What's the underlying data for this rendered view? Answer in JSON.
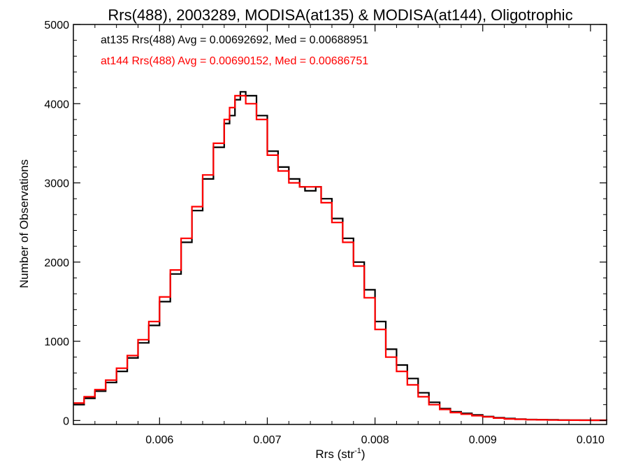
{
  "chart_data": {
    "type": "line",
    "title": "Rrs(488), 2003289, MODISA(at135) & MODISA(at144), Oligotrophic",
    "xlabel": "Rrs (str",
    "xlabel_sup": "-1",
    "xlabel_close": ")",
    "ylabel": "Number of Observations",
    "xlim": [
      0.0052,
      0.01015
    ],
    "ylim": [
      -50,
      5000
    ],
    "xticks": [
      0.006,
      0.007,
      0.008,
      0.009,
      0.01
    ],
    "xtick_labels": [
      "0.006",
      "0.007",
      "0.008",
      "0.009",
      "0.010"
    ],
    "yticks": [
      0,
      1000,
      2000,
      3000,
      4000,
      5000
    ],
    "ytick_labels": [
      "0",
      "1000",
      "2000",
      "3000",
      "4000",
      "5000"
    ],
    "grid": false,
    "legend_position": "top-left",
    "annotations": [
      {
        "text": "at135 Rrs(488) Avg = 0.00692692, Med = 0.00688951",
        "color": "#000000"
      },
      {
        "text": "at144 Rrs(488) Avg = 0.00690152, Med = 0.00686751",
        "color": "#ff0000"
      }
    ],
    "series": [
      {
        "name": "at135",
        "color": "#000000",
        "step": true,
        "x": [
          0.0052,
          0.0053,
          0.0054,
          0.0055,
          0.0056,
          0.0057,
          0.0058,
          0.0059,
          0.006,
          0.0061,
          0.0062,
          0.0063,
          0.0064,
          0.0065,
          0.0066,
          0.00665,
          0.0067,
          0.00675,
          0.0068,
          0.0069,
          0.007,
          0.0071,
          0.0072,
          0.0073,
          0.00735,
          0.0074,
          0.00745,
          0.0075,
          0.0076,
          0.0077,
          0.0078,
          0.0079,
          0.008,
          0.0081,
          0.0082,
          0.0083,
          0.0084,
          0.0085,
          0.0086,
          0.0087,
          0.0088,
          0.0089,
          0.009,
          0.0091,
          0.0092,
          0.0093,
          0.0094,
          0.0095,
          0.0096,
          0.0097,
          0.0098,
          0.0099,
          0.01,
          0.01015
        ],
        "y": [
          200,
          280,
          370,
          480,
          620,
          790,
          980,
          1200,
          1500,
          1850,
          2250,
          2650,
          3050,
          3450,
          3750,
          3850,
          4050,
          4150,
          4100,
          3850,
          3400,
          3200,
          3050,
          2950,
          2900,
          2900,
          2950,
          2800,
          2550,
          2300,
          2000,
          1650,
          1250,
          900,
          700,
          530,
          350,
          230,
          150,
          110,
          90,
          70,
          50,
          35,
          25,
          18,
          12,
          10,
          8,
          6,
          5,
          4,
          3,
          3
        ]
      },
      {
        "name": "at144",
        "color": "#ff0000",
        "step": true,
        "x": [
          0.0052,
          0.0053,
          0.0054,
          0.0055,
          0.0056,
          0.0057,
          0.0058,
          0.0059,
          0.006,
          0.0061,
          0.0062,
          0.0063,
          0.0064,
          0.0065,
          0.0066,
          0.00665,
          0.0067,
          0.00675,
          0.0068,
          0.0069,
          0.007,
          0.0071,
          0.0072,
          0.0073,
          0.00735,
          0.0074,
          0.00745,
          0.0075,
          0.0076,
          0.0077,
          0.0078,
          0.0079,
          0.008,
          0.0081,
          0.0082,
          0.0083,
          0.0084,
          0.0085,
          0.0086,
          0.0087,
          0.0088,
          0.0089,
          0.009,
          0.0091,
          0.0092,
          0.0093,
          0.0094,
          0.0095,
          0.0096,
          0.0097,
          0.0098,
          0.0099,
          0.01,
          0.01015
        ],
        "y": [
          220,
          300,
          390,
          510,
          660,
          820,
          1020,
          1250,
          1560,
          1900,
          2300,
          2700,
          3100,
          3500,
          3800,
          3950,
          4100,
          4100,
          4000,
          3800,
          3350,
          3150,
          3000,
          2950,
          2950,
          2950,
          2950,
          2750,
          2500,
          2250,
          1950,
          1550,
          1150,
          800,
          620,
          450,
          300,
          200,
          140,
          100,
          80,
          60,
          45,
          30,
          20,
          15,
          10,
          8,
          6,
          5,
          4,
          3,
          3,
          2
        ]
      }
    ]
  }
}
